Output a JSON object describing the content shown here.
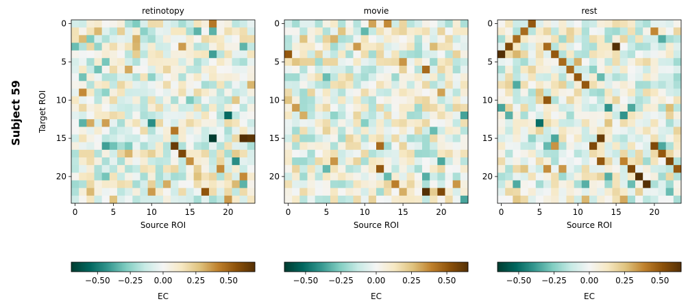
{
  "figure": {
    "row_label": "Subject 59"
  },
  "chart_data": [
    {
      "type": "heatmap",
      "title": "retinotopy",
      "xlabel": "Source ROI",
      "ylabel": "Target ROI",
      "x_ticks": [
        "0",
        "5",
        "10",
        "15",
        "20"
      ],
      "y_ticks": [
        "0",
        "5",
        "10",
        "15",
        "20"
      ],
      "n": 24,
      "seed": 59,
      "colorbar": {
        "label": "EC",
        "vmin": -0.7,
        "vmax": 0.7,
        "ticks": [
          "−0.50",
          "−0.25",
          "0.00",
          "0.25",
          "0.50"
        ],
        "tick_values": [
          -0.5,
          -0.25,
          0,
          0.25,
          0.5
        ]
      },
      "strong_cells": [
        [
          15,
          18,
          -0.7
        ],
        [
          12,
          20,
          -0.55
        ],
        [
          15,
          22,
          0.7
        ],
        [
          15,
          23,
          0.68
        ],
        [
          16,
          13,
          0.65
        ],
        [
          17,
          14,
          0.6
        ],
        [
          22,
          17,
          0.55
        ],
        [
          14,
          13,
          0.45
        ],
        [
          19,
          19,
          0.4
        ],
        [
          21,
          21,
          0.3
        ],
        [
          0,
          18,
          0.45
        ],
        [
          9,
          1,
          0.4
        ],
        [
          20,
          22,
          0.4
        ],
        [
          22,
          2,
          0.3
        ],
        [
          21,
          22,
          -0.35
        ],
        [
          18,
          21,
          -0.45
        ],
        [
          4,
          18,
          -0.4
        ],
        [
          16,
          4,
          -0.4
        ],
        [
          13,
          10,
          -0.45
        ],
        [
          20,
          4,
          -0.3
        ],
        [
          13,
          1,
          -0.35
        ],
        [
          1,
          18,
          -0.35
        ]
      ]
    },
    {
      "type": "heatmap",
      "title": "movie",
      "xlabel": "Source ROI",
      "ylabel": "",
      "x_ticks": [
        "0",
        "5",
        "10",
        "15",
        "20"
      ],
      "y_ticks": [
        "0",
        "5",
        "10",
        "15",
        "20"
      ],
      "n": 24,
      "seed": 123,
      "colorbar": {
        "label": "EC",
        "vmin": -0.65,
        "vmax": 0.65,
        "ticks": [
          "−0.50",
          "−0.25",
          "0.00",
          "0.25",
          "0.50"
        ],
        "tick_values": [
          -0.5,
          -0.25,
          0,
          0.25,
          0.5
        ]
      },
      "strong_cells": [
        [
          22,
          18,
          0.65
        ],
        [
          22,
          20,
          0.55
        ],
        [
          4,
          0,
          0.5
        ],
        [
          19,
          12,
          0.5
        ],
        [
          16,
          12,
          0.45
        ],
        [
          21,
          14,
          0.4
        ],
        [
          6,
          18,
          0.45
        ],
        [
          18,
          6,
          0.35
        ],
        [
          7,
          5,
          -0.3
        ],
        [
          18,
          20,
          -0.35
        ],
        [
          14,
          19,
          -0.3
        ],
        [
          13,
          10,
          -0.25
        ],
        [
          12,
          2,
          0.3
        ],
        [
          22,
          15,
          0.3
        ]
      ]
    },
    {
      "type": "heatmap",
      "title": "rest",
      "xlabel": "Source ROI",
      "ylabel": "",
      "x_ticks": [
        "0",
        "5",
        "10",
        "15",
        "20"
      ],
      "y_ticks": [
        "0",
        "5",
        "10",
        "15",
        "20"
      ],
      "n": 24,
      "seed": 777,
      "colorbar": {
        "label": "EC",
        "vmin": -0.65,
        "vmax": 0.65,
        "ticks": [
          "−0.50",
          "−0.25",
          "0.00",
          "0.25",
          "0.50"
        ],
        "tick_values": [
          -0.5,
          -0.25,
          0,
          0.25,
          0.5
        ]
      },
      "strong_cells": [
        [
          4,
          0,
          0.65
        ],
        [
          3,
          1,
          0.55
        ],
        [
          2,
          2,
          0.45
        ],
        [
          1,
          3,
          0.45
        ],
        [
          0,
          4,
          0.5
        ],
        [
          3,
          6,
          0.45
        ],
        [
          4,
          7,
          0.5
        ],
        [
          5,
          8,
          0.45
        ],
        [
          6,
          9,
          0.45
        ],
        [
          7,
          10,
          0.5
        ],
        [
          8,
          11,
          0.5
        ],
        [
          10,
          6,
          0.5
        ],
        [
          15,
          13,
          0.6
        ],
        [
          16,
          12,
          0.55
        ],
        [
          18,
          13,
          0.5
        ],
        [
          3,
          15,
          0.65
        ],
        [
          19,
          17,
          0.55
        ],
        [
          20,
          18,
          0.65
        ],
        [
          21,
          19,
          0.65
        ],
        [
          16,
          20,
          0.55
        ],
        [
          17,
          21,
          0.5
        ],
        [
          18,
          22,
          0.55
        ],
        [
          19,
          23,
          0.5
        ],
        [
          13,
          5,
          -0.5
        ],
        [
          11,
          14,
          -0.4
        ],
        [
          12,
          16,
          -0.4
        ],
        [
          15,
          7,
          -0.35
        ],
        [
          16,
          21,
          -0.35
        ],
        [
          22,
          22,
          -0.3
        ],
        [
          21,
          17,
          -0.3
        ],
        [
          11,
          17,
          -0.35
        ]
      ]
    }
  ]
}
